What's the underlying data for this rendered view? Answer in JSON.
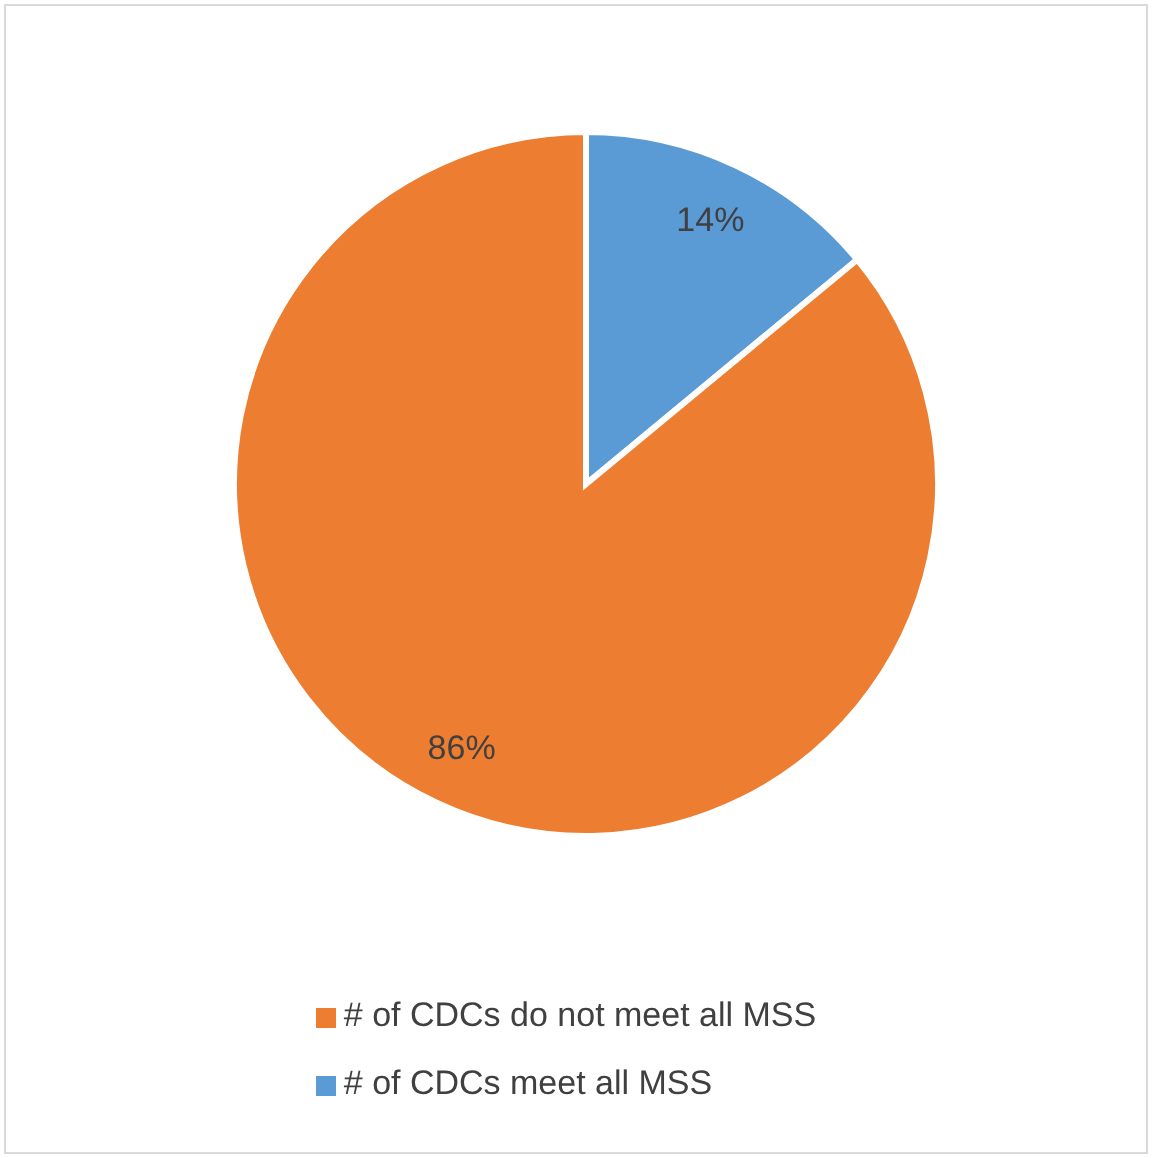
{
  "chart_data": {
    "type": "pie",
    "categories": [
      "# of CDCs meet all MSS",
      "# of CDCs do not meet all MSS"
    ],
    "values": [
      14,
      86
    ],
    "colors": [
      "#5b9bd5",
      "#ed7d31"
    ],
    "value_labels": [
      "14%",
      "86%"
    ],
    "legend": "bottom"
  }
}
